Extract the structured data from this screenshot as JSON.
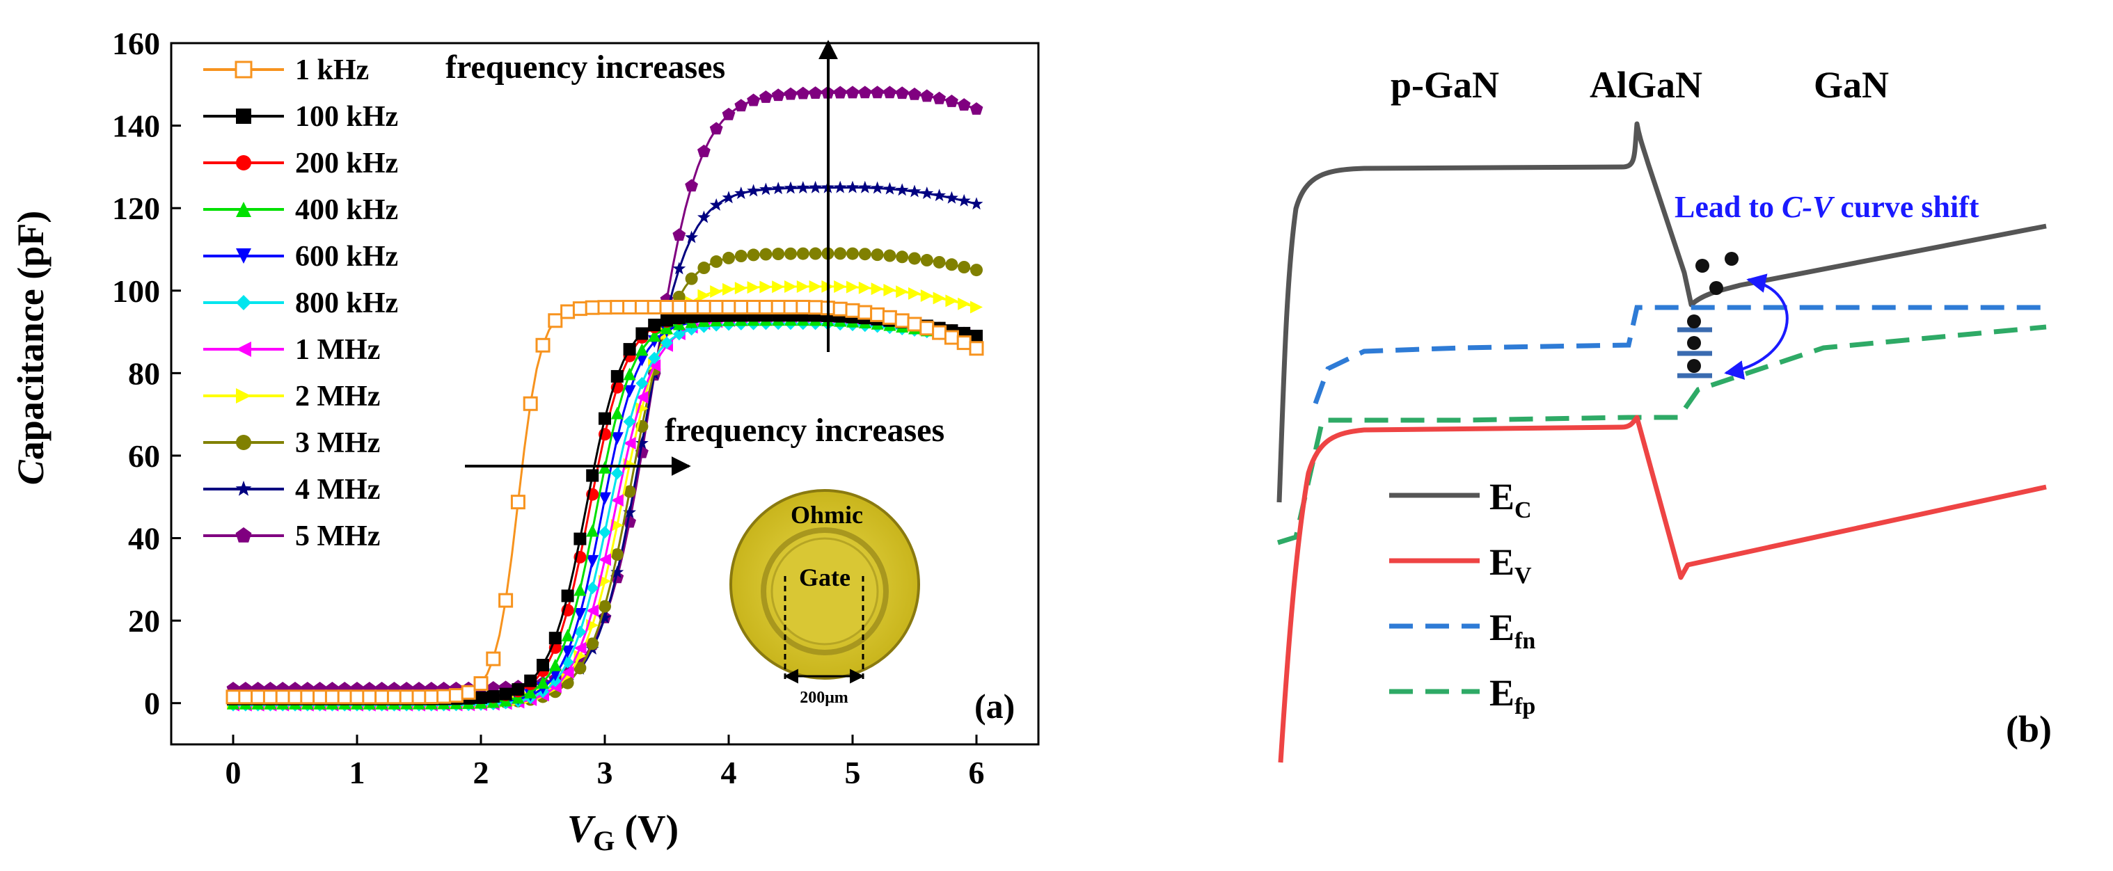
{
  "chart_data": [
    {
      "type": "line",
      "panel_label": "(a)",
      "xlabel": {
        "main": "V",
        "sub": "G",
        "unit": " (V)"
      },
      "ylabel": {
        "first": "C",
        "rest": "apacitance (pF)"
      },
      "xlim": [
        -0.5,
        6.5
      ],
      "ylim": [
        -10,
        160
      ],
      "xticks": [
        0,
        1,
        2,
        3,
        4,
        5,
        6
      ],
      "yticks": [
        0,
        20,
        40,
        60,
        80,
        100,
        120,
        140,
        160
      ],
      "series": [
        {
          "name": "1 kHz",
          "color": "#f7931e",
          "marker": "square-open",
          "baseline": 1.5,
          "peak": 96,
          "vmid": 2.3,
          "width": 0.09,
          "vpeak": 4.6,
          "fall": 10
        },
        {
          "name": "100 kHz",
          "color": "#000000",
          "marker": "square",
          "baseline": 1.0,
          "peak": 94,
          "vmid": 2.85,
          "width": 0.15,
          "vpeak": 4.6,
          "fall": 5
        },
        {
          "name": "200 kHz",
          "color": "#ff0000",
          "marker": "circle",
          "baseline": 1.0,
          "peak": 94,
          "vmid": 2.88,
          "width": 0.15,
          "vpeak": 4.6,
          "fall": 5
        },
        {
          "name": "400 kHz",
          "color": "#00e000",
          "marker": "triangle-up",
          "baseline": 0.0,
          "peak": 93,
          "vmid": 2.93,
          "width": 0.15,
          "vpeak": 4.6,
          "fall": 5
        },
        {
          "name": "600 kHz",
          "color": "#0000ff",
          "marker": "triangle-down",
          "baseline": 0.0,
          "peak": 93,
          "vmid": 2.98,
          "width": 0.15,
          "vpeak": 4.6,
          "fall": 4
        },
        {
          "name": "800 kHz",
          "color": "#00e5ee",
          "marker": "diamond",
          "baseline": -0.5,
          "peak": 92,
          "vmid": 3.03,
          "width": 0.16,
          "vpeak": 4.6,
          "fall": 4
        },
        {
          "name": "1 MHz",
          "color": "#ff00ff",
          "marker": "triangle-left",
          "baseline": -0.5,
          "peak": 93,
          "vmid": 3.08,
          "width": 0.16,
          "vpeak": 4.6,
          "fall": 4
        },
        {
          "name": "2 MHz",
          "color": "#ffff00",
          "marker": "triangle-right",
          "baseline": 0.0,
          "peak": 101,
          "vmid": 3.15,
          "width": 0.17,
          "vpeak": 4.8,
          "fall": 5
        },
        {
          "name": "3 MHz",
          "color": "#808000",
          "marker": "circle",
          "baseline": 0.0,
          "peak": 109,
          "vmid": 3.22,
          "width": 0.17,
          "vpeak": 4.9,
          "fall": 4
        },
        {
          "name": "4 MHz",
          "color": "#000080",
          "marker": "star",
          "baseline": 1.0,
          "peak": 125,
          "vmid": 3.3,
          "width": 0.18,
          "vpeak": 5.0,
          "fall": 4
        },
        {
          "name": "5 MHz",
          "color": "#800080",
          "marker": "pentagon",
          "baseline": 3.5,
          "peak": 148,
          "vmid": 3.38,
          "width": 0.19,
          "vpeak": 5.25,
          "fall": 4
        }
      ],
      "annotations": {
        "top_arrow": "frequency increases",
        "mid_arrow": "frequency increases"
      },
      "inset": {
        "ohmic": "Ohmic",
        "gate": "Gate",
        "scale": "200μm"
      }
    },
    {
      "type": "diagram",
      "panel_label": "(b)",
      "regions": [
        "p-GaN",
        "AlGaN",
        "GaN"
      ],
      "annotation": {
        "prefix": "Lead to ",
        "italic": "C-V",
        "suffix": " curve  shift"
      },
      "legend": [
        {
          "main": "E",
          "sub": "C",
          "color": "#555555",
          "style": "solid"
        },
        {
          "main": "E",
          "sub": "V",
          "color": "#ee4444",
          "style": "solid"
        },
        {
          "main": "E",
          "sub": "fn",
          "color": "#2e7bd6",
          "style": "dashed"
        },
        {
          "main": "E",
          "sub": "fp",
          "color": "#2eaa66",
          "style": "dashed"
        }
      ]
    }
  ]
}
